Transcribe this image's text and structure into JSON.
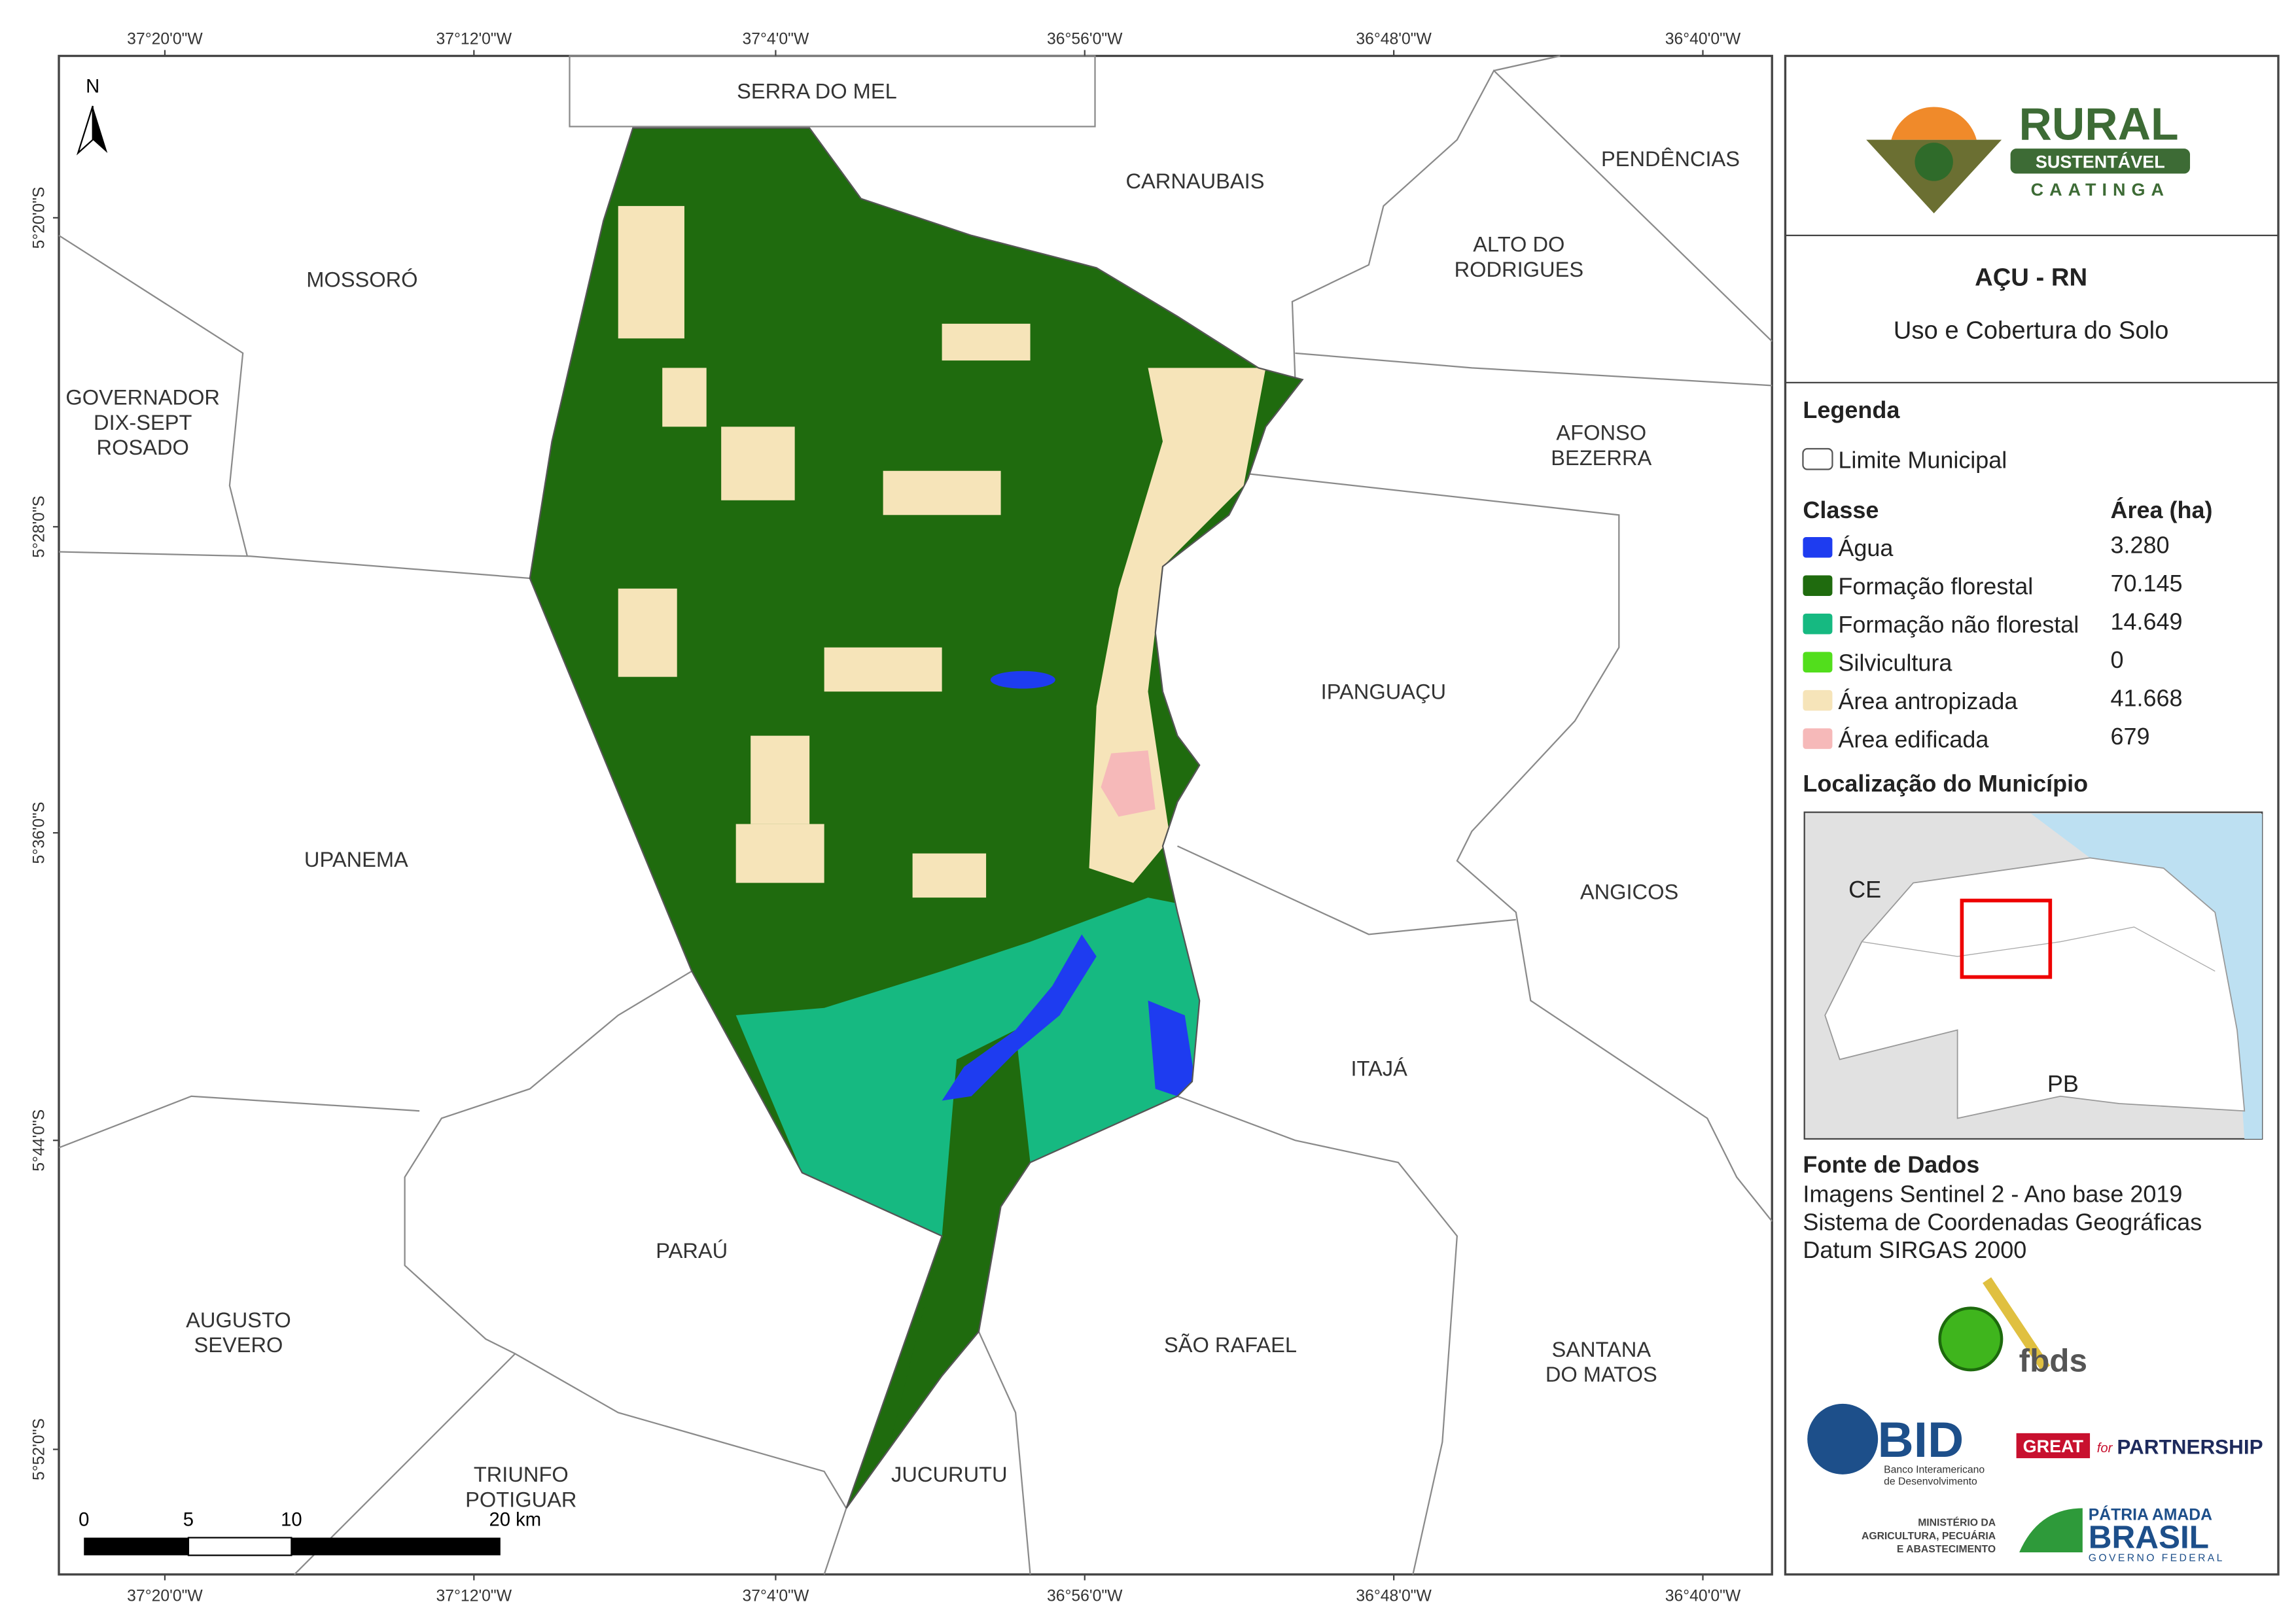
{
  "map": {
    "lon_labels": [
      "37°20'0\"W",
      "37°12'0\"W",
      "37°4'0\"W",
      "36°56'0\"W",
      "36°48'0\"W",
      "36°40'0\"W"
    ],
    "lat_labels": [
      "5°20'0\"S",
      "5°28'0\"S",
      "5°36'0\"S",
      "5°44'0\"S",
      "5°52'0\"S"
    ],
    "north": "N",
    "scale_labels": [
      "0",
      "5",
      "10",
      "20 km"
    ],
    "municipalities": [
      {
        "lines": [
          "SERRA DO MEL"
        ]
      },
      {
        "lines": [
          "CARNAUBAIS"
        ]
      },
      {
        "lines": [
          "PENDÊNCIAS"
        ]
      },
      {
        "lines": [
          "ALTO DO",
          "RODRIGUES"
        ]
      },
      {
        "lines": [
          "MOSSORÓ"
        ]
      },
      {
        "lines": [
          "GOVERNADOR",
          "DIX-SEPT",
          "ROSADO"
        ]
      },
      {
        "lines": [
          "AFONSO",
          "BEZERRA"
        ]
      },
      {
        "lines": [
          "IPANGUAÇU"
        ]
      },
      {
        "lines": [
          "UPANEMA"
        ]
      },
      {
        "lines": [
          "ANGICOS"
        ]
      },
      {
        "lines": [
          "ITAJÁ"
        ]
      },
      {
        "lines": [
          "PARAÚ"
        ]
      },
      {
        "lines": [
          "AUGUSTO",
          "SEVERO"
        ]
      },
      {
        "lines": [
          "SÃO RAFAEL"
        ]
      },
      {
        "lines": [
          "SANTANA",
          "DO MATOS"
        ]
      },
      {
        "lines": [
          "TRIUNFO",
          "POTIGUAR"
        ]
      },
      {
        "lines": [
          "JUCURUTU"
        ]
      }
    ]
  },
  "panel": {
    "logo": {
      "title": "RURAL",
      "subtitle": "SUSTENTÁVEL",
      "tagline": "CAATINGA"
    },
    "title": "AÇU - RN",
    "subtitle": "Uso e Cobertura do Solo",
    "legend": {
      "heading": "Legenda",
      "boundary": "Limite Municipal",
      "class_header": "Classe",
      "area_header": "Área (ha)",
      "classes": [
        {
          "name": "Água",
          "color": "#1e3cf0",
          "area": "3.280"
        },
        {
          "name": "Formação florestal",
          "color": "#1f6b0e",
          "area": "70.145"
        },
        {
          "name": "Formação não florestal",
          "color": "#16b981",
          "area": "14.649"
        },
        {
          "name": "Silvicultura",
          "color": "#52de1c",
          "area": "0"
        },
        {
          "name": "Área antropizada",
          "color": "#f6e4b9",
          "area": "41.668"
        },
        {
          "name": "Área edificada",
          "color": "#f6b9b9",
          "area": "679"
        }
      ]
    },
    "location": {
      "heading": "Localização do Município",
      "labels": [
        "CE",
        "PB"
      ]
    },
    "sources": {
      "heading": "Fonte de Dados",
      "lines": [
        "Imagens Sentinel 2 - Ano base 2019",
        "Sistema de Coordenadas Geográficas",
        "Datum SIRGAS 2000"
      ]
    },
    "sponsors": {
      "fbds": "fbds",
      "bid": "BID",
      "bid_name": [
        "Banco Interamericano",
        "de Desenvolvimento"
      ],
      "great": [
        "GREAT",
        "for",
        "PARTNERSHIP"
      ],
      "ministry": [
        "MINISTÉRIO DA",
        "AGRICULTURA, PECUÁRIA",
        "E ABASTECIMENTO"
      ],
      "brasil": [
        "PÁTRIA AMADA",
        "BRASIL",
        "GOVERNO FEDERAL"
      ]
    }
  }
}
